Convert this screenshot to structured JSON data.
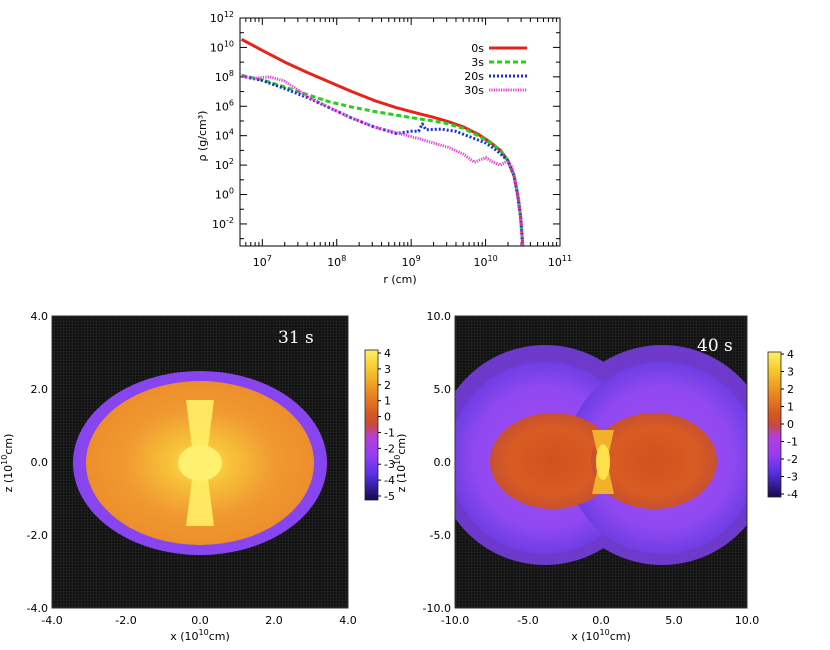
{
  "chart_data": [
    {
      "type": "line",
      "title": "",
      "xlabel": "r (cm)",
      "ylabel": "ρ (g/cm³)",
      "x_scale": "log",
      "y_scale": "log",
      "xlim_log10": [
        6.7,
        11.0
      ],
      "ylim_log10": [
        -3.5,
        12.0
      ],
      "x_ticks": [
        {
          "base": "10",
          "exp": "7",
          "log": 7
        },
        {
          "base": "10",
          "exp": "8",
          "log": 8
        },
        {
          "base": "10",
          "exp": "9",
          "log": 9
        },
        {
          "base": "10",
          "exp": "10",
          "log": 10
        },
        {
          "base": "10",
          "exp": "11",
          "log": 11
        }
      ],
      "y_ticks": [
        {
          "base": "10",
          "exp": "-2",
          "log": -2
        },
        {
          "base": "10",
          "exp": "0",
          "log": 0
        },
        {
          "base": "10",
          "exp": "2",
          "log": 2
        },
        {
          "base": "10",
          "exp": "4",
          "log": 4
        },
        {
          "base": "10",
          "exp": "6",
          "log": 6
        },
        {
          "base": "10",
          "exp": "8",
          "log": 8
        },
        {
          "base": "10",
          "exp": "10",
          "log": 10
        },
        {
          "base": "10",
          "exp": "12",
          "log": 12
        }
      ],
      "legend_position": "top-right",
      "series": [
        {
          "name": "0s",
          "color": "#e8231c",
          "dash": "solid",
          "points_log10": [
            [
              6.72,
              10.55
            ],
            [
              7.0,
              9.8
            ],
            [
              7.3,
              9.0
            ],
            [
              7.6,
              8.3
            ],
            [
              7.9,
              7.65
            ],
            [
              8.2,
              7.0
            ],
            [
              8.5,
              6.4
            ],
            [
              8.8,
              5.9
            ],
            [
              9.1,
              5.5
            ],
            [
              9.3,
              5.25
            ],
            [
              9.5,
              4.95
            ],
            [
              9.7,
              4.6
            ],
            [
              9.9,
              4.1
            ],
            [
              10.05,
              3.6
            ],
            [
              10.2,
              3.0
            ],
            [
              10.3,
              2.3
            ],
            [
              10.38,
              1.3
            ],
            [
              10.43,
              0.0
            ],
            [
              10.47,
              -1.5
            ],
            [
              10.5,
              -3.5
            ]
          ]
        },
        {
          "name": "3s",
          "color": "#22d118",
          "dash": "dashed",
          "points_log10": [
            [
              6.72,
              8.1
            ],
            [
              7.0,
              7.8
            ],
            [
              7.3,
              7.3
            ],
            [
              7.6,
              6.8
            ],
            [
              7.9,
              6.3
            ],
            [
              8.2,
              5.95
            ],
            [
              8.5,
              5.65
            ],
            [
              8.8,
              5.4
            ],
            [
              9.1,
              5.15
            ],
            [
              9.3,
              5.0
            ],
            [
              9.5,
              4.8
            ],
            [
              9.7,
              4.5
            ],
            [
              9.9,
              4.0
            ],
            [
              10.05,
              3.55
            ],
            [
              10.2,
              3.0
            ],
            [
              10.3,
              2.3
            ],
            [
              10.38,
              1.3
            ],
            [
              10.43,
              0.0
            ],
            [
              10.47,
              -1.5
            ],
            [
              10.5,
              -3.5
            ]
          ]
        },
        {
          "name": "20s",
          "color": "#1c2fd6",
          "dash": "dotted",
          "points_log10": [
            [
              6.72,
              8.05
            ],
            [
              7.0,
              7.75
            ],
            [
              7.3,
              7.2
            ],
            [
              7.6,
              6.6
            ],
            [
              7.9,
              5.9
            ],
            [
              8.2,
              5.2
            ],
            [
              8.5,
              4.6
            ],
            [
              8.8,
              4.15
            ],
            [
              9.0,
              4.3
            ],
            [
              9.1,
              4.3
            ],
            [
              9.15,
              4.8
            ],
            [
              9.2,
              4.4
            ],
            [
              9.4,
              4.45
            ],
            [
              9.6,
              4.3
            ],
            [
              9.8,
              3.9
            ],
            [
              10.0,
              3.5
            ],
            [
              10.15,
              3.0
            ],
            [
              10.3,
              2.3
            ],
            [
              10.38,
              1.3
            ],
            [
              10.43,
              0.0
            ],
            [
              10.47,
              -1.5
            ],
            [
              10.5,
              -3.5
            ]
          ]
        },
        {
          "name": "30s",
          "color": "#e040d8",
          "dash": "dense",
          "points_log10": [
            [
              6.72,
              8.05
            ],
            [
              6.9,
              7.9
            ],
            [
              7.1,
              8.0
            ],
            [
              7.3,
              7.7
            ],
            [
              7.6,
              6.7
            ],
            [
              7.9,
              5.9
            ],
            [
              8.2,
              5.2
            ],
            [
              8.5,
              4.6
            ],
            [
              8.8,
              4.2
            ],
            [
              9.1,
              3.8
            ],
            [
              9.3,
              3.5
            ],
            [
              9.5,
              3.2
            ],
            [
              9.7,
              2.75
            ],
            [
              9.85,
              2.2
            ],
            [
              10.0,
              2.5
            ],
            [
              10.1,
              2.2
            ],
            [
              10.2,
              2.0
            ],
            [
              10.3,
              2.3
            ],
            [
              10.35,
              1.9
            ],
            [
              10.4,
              1.0
            ],
            [
              10.45,
              -0.5
            ],
            [
              10.48,
              -2.0
            ],
            [
              10.5,
              -3.5
            ]
          ]
        }
      ]
    },
    {
      "type": "heatmap",
      "title": "31 s",
      "xlabel_base": "x (10",
      "xlabel_exp": "10",
      "xlabel_unit": "cm)",
      "ylabel_base": "z (10",
      "ylabel_exp": "10",
      "ylabel_unit": "cm)",
      "xlim": [
        -4.0,
        4.0
      ],
      "ylim": [
        -4.0,
        4.0
      ],
      "x_ticks": [
        "-4.0",
        "-2.0",
        "0.0",
        "2.0",
        "4.0"
      ],
      "y_ticks": [
        "4.0",
        "2.0",
        "0.0",
        "-2.0",
        "-4.0"
      ],
      "colorbar_ticks": [
        "4",
        "3",
        "2",
        "1",
        "0",
        "-1",
        "-2",
        "-3",
        "-4",
        "-5"
      ],
      "colorbar_range": [
        -5,
        4
      ]
    },
    {
      "type": "heatmap",
      "title": "40 s",
      "xlabel_base": "x (10",
      "xlabel_exp": "10",
      "xlabel_unit": "cm)",
      "ylabel_base": "z (10",
      "ylabel_exp": "10",
      "ylabel_unit": "cm)",
      "xlim": [
        -10.0,
        10.0
      ],
      "ylim": [
        -10.0,
        10.0
      ],
      "x_ticks": [
        "-10.0",
        "-5.0",
        "0.0",
        "5.0",
        "10.0"
      ],
      "y_ticks": [
        "10.0",
        "5.0",
        "0.0",
        "-5.0",
        "-10.0"
      ],
      "colorbar_ticks": [
        "4",
        "3",
        "2",
        "1",
        "0",
        "-1",
        "-2",
        "-3",
        "-4"
      ],
      "colorbar_range": [
        -4,
        4
      ]
    }
  ]
}
